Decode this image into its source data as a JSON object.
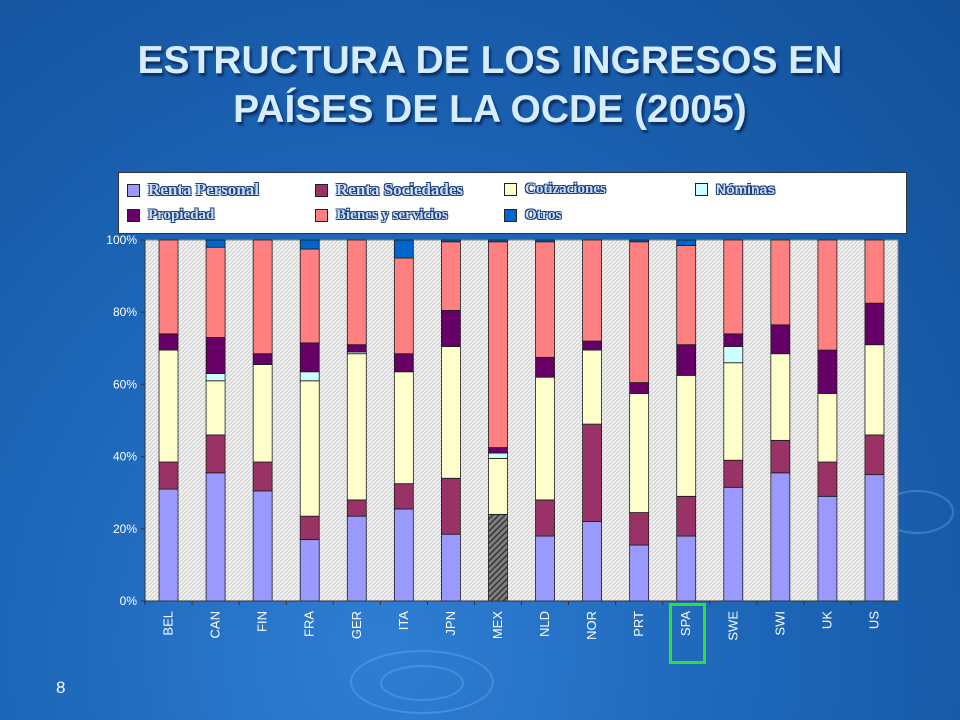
{
  "slide": {
    "title_line1": "ESTRUCTURA DE LOS INGRESOS EN",
    "title_line2": "PAÍSES DE LA  OCDE (2005)",
    "page_number": "8",
    "highlighted_category": "SPA"
  },
  "colors": {
    "background": "#1d66b8",
    "plot_background": "#d4d4d4",
    "highlight": "#33dd33"
  },
  "chart_data": {
    "type": "bar",
    "stacked": true,
    "normalized": true,
    "title": "",
    "xlabel": "",
    "ylabel": "",
    "ylim": [
      0,
      100
    ],
    "y_ticks": [
      "0%",
      "20%",
      "40%",
      "60%",
      "80%",
      "100%"
    ],
    "grid": false,
    "legend_position": "top",
    "categories": [
      "BEL",
      "CAN",
      "FIN",
      "FRA",
      "GER",
      "ITA",
      "JPN",
      "MEX",
      "NLD",
      "NOR",
      "PRT",
      "SPA",
      "SWE",
      "SWI",
      "UK",
      "US"
    ],
    "series": [
      {
        "name": "Renta Personal",
        "color": "#9999ff",
        "values": [
          31,
          35.5,
          30.5,
          17,
          23.5,
          25.5,
          18.5,
          24,
          18,
          22,
          15.5,
          18,
          31.5,
          35.5,
          29,
          35
        ]
      },
      {
        "name": "Renta Sociedades",
        "color": "#993366",
        "values": [
          7.5,
          10.5,
          8,
          6.5,
          4.5,
          7,
          15.5,
          0,
          10,
          27,
          9,
          11,
          7.5,
          9,
          9.5,
          11
        ]
      },
      {
        "name": "Cotizaciones",
        "color": "#ffffcc",
        "values": [
          31,
          15,
          27,
          37.5,
          40.5,
          31,
          36.5,
          15.5,
          34,
          20.5,
          33,
          33.5,
          27,
          24,
          19,
          25
        ]
      },
      {
        "name": "Nóminas",
        "color": "#ccffff",
        "values": [
          0,
          2,
          0,
          2.5,
          0.5,
          0,
          0,
          1.5,
          0,
          0,
          0,
          0,
          4.5,
          0,
          0,
          0
        ]
      },
      {
        "name": "Propiedad",
        "color": "#660066",
        "values": [
          4.5,
          10,
          3,
          8,
          2,
          5,
          10,
          1.5,
          5.5,
          2.5,
          3,
          8.5,
          3.5,
          8,
          12,
          11.5
        ]
      },
      {
        "name": "Bienes y servicios",
        "color": "#ff8080",
        "values": [
          26,
          25,
          31.5,
          26,
          29,
          26.5,
          19,
          57,
          32,
          28,
          39,
          27.5,
          26,
          23.5,
          30.5,
          17.5
        ]
      },
      {
        "name": "Otros",
        "color": "#0066cc",
        "values": [
          0,
          2,
          0,
          2.5,
          0,
          5,
          0.5,
          0.5,
          0.5,
          0,
          0.5,
          1.5,
          0,
          0,
          0,
          0
        ]
      }
    ]
  }
}
